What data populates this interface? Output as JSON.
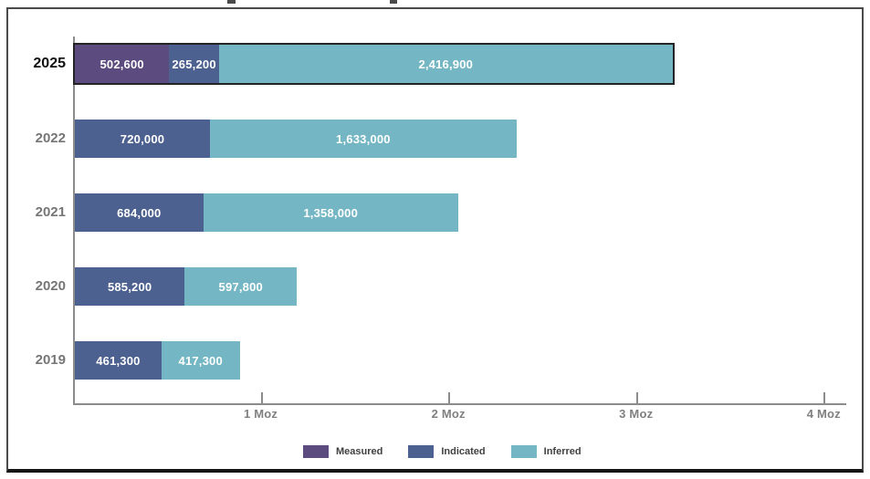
{
  "chart_data": {
    "type": "bar",
    "orientation": "horizontal",
    "stacked": true,
    "title": "",
    "xlabel": "",
    "ylabel": "",
    "unit": "Moz",
    "categories": [
      "2025",
      "2022",
      "2021",
      "2020",
      "2019"
    ],
    "highlighted_category": "2025",
    "series": [
      {
        "name": "Measured",
        "color": "#5c4b7e",
        "values": [
          502600,
          0,
          0,
          0,
          0
        ],
        "labels": [
          "502,600",
          "",
          "",
          "",
          ""
        ]
      },
      {
        "name": "Indicated",
        "color": "#4d6190",
        "values": [
          265200,
          720000,
          684000,
          585200,
          461300
        ],
        "labels": [
          "265,200",
          "720,000",
          "684,000",
          "585,200",
          "461,300"
        ]
      },
      {
        "name": "Inferred",
        "color": "#74b6c3",
        "values": [
          2416900,
          1633000,
          1358000,
          597800,
          417300
        ],
        "labels": [
          "2,416,900",
          "1,633,000",
          "1,358,000",
          "597,800",
          "417,300"
        ]
      }
    ],
    "totals": [
      3184700,
      2353000,
      2042000,
      1183000,
      878600
    ],
    "x_ticks": [
      {
        "value": 1000000,
        "label": "1 Moz"
      },
      {
        "value": 2000000,
        "label": "2 Moz"
      },
      {
        "value": 3000000,
        "label": "3 Moz"
      },
      {
        "value": 4000000,
        "label": "4 Moz"
      }
    ],
    "xlim": [
      0,
      4120000
    ],
    "grid": false,
    "legend_position": "bottom",
    "legend": [
      "Measured",
      "Indicated",
      "Inferred"
    ]
  },
  "colors": {
    "measured": "#5c4b7e",
    "indicated": "#4d6190",
    "inferred": "#74b6c3",
    "bar_value_text": "#ffffff",
    "axis_line": "#8c8c8c",
    "tick_label": "#808080",
    "year_label": "#767676",
    "year_label_highlight": "#111111",
    "highlight_outline": "#242424",
    "frame_border": "#4a4a4a"
  }
}
